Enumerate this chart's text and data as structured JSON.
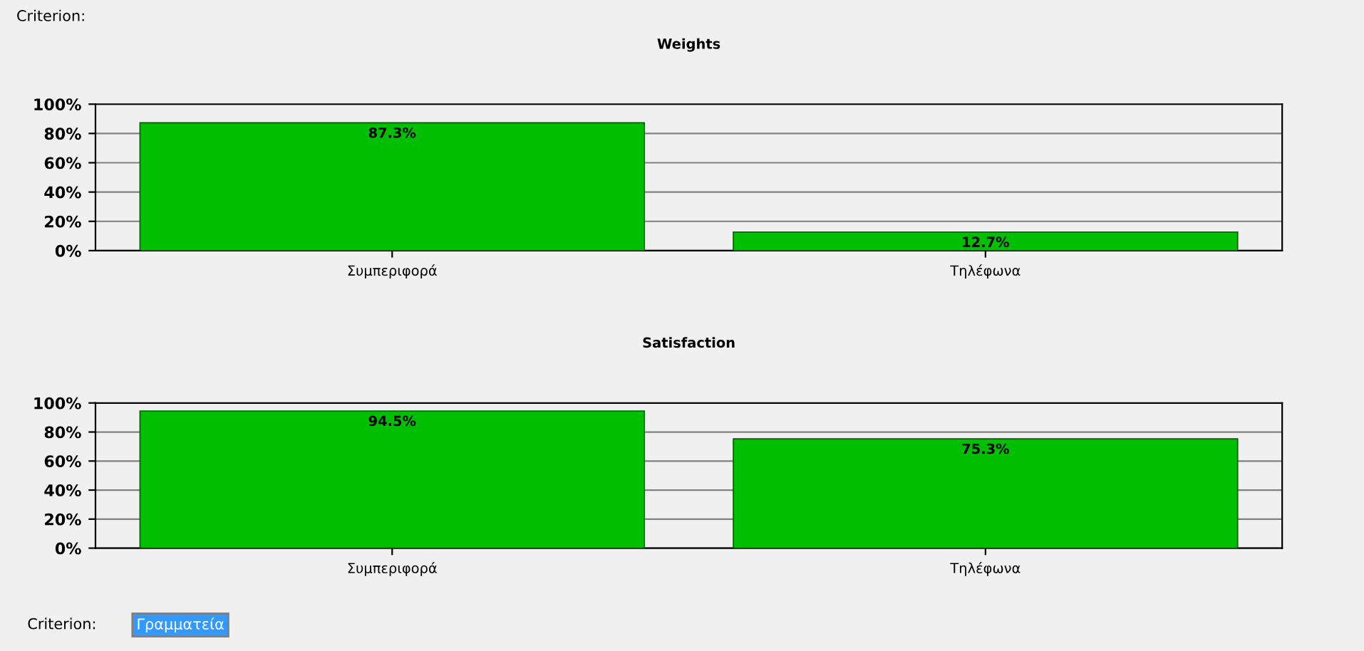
{
  "chart_data": [
    {
      "type": "bar",
      "title": "Weights",
      "categories": [
        "Συμπεριφορά",
        "Τηλέφωνα"
      ],
      "values": [
        87.3,
        12.7
      ],
      "color": "#00bf00",
      "value_labels": [
        "87.3%",
        "12.7%"
      ],
      "ylim": [
        0,
        100
      ],
      "yticks": [
        {
          "value": 0,
          "label": "0%"
        },
        {
          "value": 20,
          "label": "20%"
        },
        {
          "value": 40,
          "label": "40%"
        },
        {
          "value": 60,
          "label": "60%"
        },
        {
          "value": 80,
          "label": "80%"
        },
        {
          "value": 100,
          "label": "100%"
        }
      ],
      "grid": "y",
      "annotations": [
        "Criterion:"
      ]
    },
    {
      "type": "bar",
      "title": "Satisfaction",
      "categories": [
        "Συμπεριφορά",
        "Τηλέφωνα"
      ],
      "values": [
        94.5,
        75.3
      ],
      "color": "#00bf00",
      "value_labels": [
        "94.5%",
        "75.3%"
      ],
      "ylim": [
        0,
        100
      ],
      "yticks": [
        {
          "value": 0,
          "label": "0%"
        },
        {
          "value": 20,
          "label": "20%"
        },
        {
          "value": 40,
          "label": "40%"
        },
        {
          "value": 60,
          "label": "60%"
        },
        {
          "value": 80,
          "label": "80%"
        },
        {
          "value": 100,
          "label": "100%"
        }
      ],
      "grid": "y",
      "annotations": [
        "Criterion:",
        "Γραμματεία"
      ]
    }
  ]
}
